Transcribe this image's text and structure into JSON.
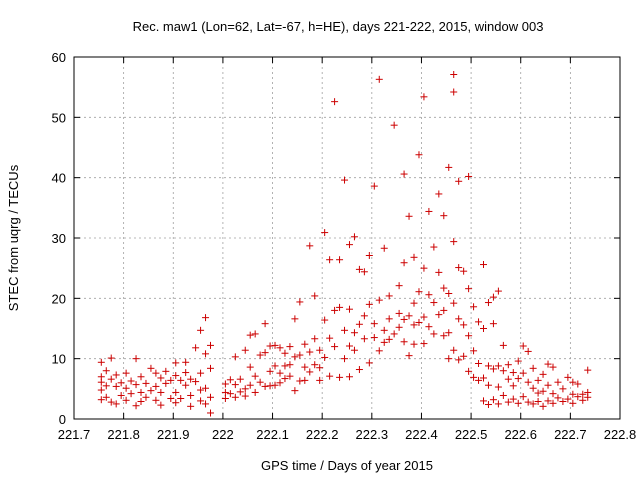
{
  "chart_data": {
    "type": "scatter",
    "title": "Rec. maw1 (Lon=62, Lat=-67, h=HE), days 221-222, 2015, window 003",
    "xlabel": "GPS time / Days of year 2015",
    "ylabel": "STEC from uqrg / TECUs",
    "xlim": [
      221.7,
      222.8
    ],
    "ylim": [
      0,
      60
    ],
    "xticks": [
      "221.7",
      "221.8",
      "221.9",
      "222",
      "222.1",
      "222.2",
      "222.3",
      "222.4",
      "222.5",
      "222.6",
      "222.7",
      "222.8"
    ],
    "yticks": [
      "0",
      "10",
      "20",
      "30",
      "40",
      "50",
      "60"
    ],
    "grid": true,
    "marker": "+",
    "color": "#cc0000",
    "series": [
      {
        "name": "STEC",
        "points": [
          [
            221.755,
            9.4
          ],
          [
            221.755,
            7.0
          ],
          [
            221.755,
            6.1
          ],
          [
            221.755,
            4.8
          ],
          [
            221.755,
            3.2
          ],
          [
            221.765,
            8.0
          ],
          [
            221.765,
            5.5
          ],
          [
            221.765,
            3.6
          ],
          [
            221.775,
            10.1
          ],
          [
            221.775,
            6.6
          ],
          [
            221.775,
            2.8
          ],
          [
            221.785,
            7.3
          ],
          [
            221.785,
            5.4
          ],
          [
            221.785,
            2.5
          ],
          [
            221.795,
            6.0
          ],
          [
            221.795,
            3.9
          ],
          [
            221.805,
            7.6
          ],
          [
            221.805,
            5.1
          ],
          [
            221.805,
            3.1
          ],
          [
            221.815,
            6.3
          ],
          [
            221.815,
            4.2
          ],
          [
            221.825,
            10.0
          ],
          [
            221.825,
            5.7
          ],
          [
            221.825,
            2.2
          ],
          [
            221.835,
            7.0
          ],
          [
            221.835,
            4.4
          ],
          [
            221.835,
            2.9
          ],
          [
            221.845,
            5.9
          ],
          [
            221.845,
            3.6
          ],
          [
            221.855,
            8.4
          ],
          [
            221.855,
            4.7
          ],
          [
            221.865,
            7.6
          ],
          [
            221.865,
            5.4
          ],
          [
            221.865,
            3.1
          ],
          [
            221.875,
            6.8
          ],
          [
            221.875,
            4.4
          ],
          [
            221.875,
            2.3
          ],
          [
            221.885,
            7.9
          ],
          [
            221.885,
            5.9
          ],
          [
            221.895,
            6.4
          ],
          [
            221.895,
            3.4
          ],
          [
            221.905,
            9.3
          ],
          [
            221.905,
            7.2
          ],
          [
            221.905,
            4.4
          ],
          [
            221.905,
            2.7
          ],
          [
            221.915,
            6.4
          ],
          [
            221.915,
            3.4
          ],
          [
            221.925,
            9.4
          ],
          [
            221.925,
            7.7
          ],
          [
            221.925,
            5.6
          ],
          [
            221.935,
            6.6
          ],
          [
            221.935,
            3.9
          ],
          [
            221.935,
            2.1
          ],
          [
            221.945,
            11.8
          ],
          [
            221.945,
            6.2
          ],
          [
            221.955,
            14.7
          ],
          [
            221.955,
            7.6
          ],
          [
            221.955,
            4.8
          ],
          [
            221.955,
            3.0
          ],
          [
            221.965,
            16.8
          ],
          [
            221.965,
            10.8
          ],
          [
            221.965,
            5.1
          ],
          [
            221.965,
            2.5
          ],
          [
            221.975,
            12.2
          ],
          [
            221.975,
            8.4
          ],
          [
            221.975,
            3.6
          ],
          [
            221.975,
            1.0
          ],
          [
            222.005,
            5.8
          ],
          [
            222.005,
            4.4
          ],
          [
            222.005,
            3.4
          ],
          [
            222.015,
            6.5
          ],
          [
            222.015,
            4.2
          ],
          [
            222.025,
            10.3
          ],
          [
            222.025,
            5.7
          ],
          [
            222.025,
            3.6
          ],
          [
            222.035,
            6.6
          ],
          [
            222.035,
            4.5
          ],
          [
            222.045,
            11.4
          ],
          [
            222.045,
            5.0
          ],
          [
            222.045,
            3.8
          ],
          [
            222.055,
            13.9
          ],
          [
            222.055,
            8.6
          ],
          [
            222.055,
            5.6
          ],
          [
            222.065,
            14.1
          ],
          [
            222.065,
            7.1
          ],
          [
            222.065,
            4.4
          ],
          [
            222.075,
            10.6
          ],
          [
            222.075,
            6.1
          ],
          [
            222.085,
            15.8
          ],
          [
            222.085,
            11.0
          ],
          [
            222.085,
            5.4
          ],
          [
            222.095,
            12.1
          ],
          [
            222.095,
            7.9
          ],
          [
            222.095,
            5.5
          ],
          [
            222.105,
            12.2
          ],
          [
            222.105,
            8.8
          ],
          [
            222.105,
            5.6
          ],
          [
            222.115,
            11.8
          ],
          [
            222.115,
            7.6
          ],
          [
            222.115,
            6.0
          ],
          [
            222.125,
            10.9
          ],
          [
            222.125,
            8.8
          ],
          [
            222.125,
            6.7
          ],
          [
            222.135,
            12.0
          ],
          [
            222.135,
            9.0
          ],
          [
            222.135,
            7.1
          ],
          [
            222.145,
            16.6
          ],
          [
            222.145,
            10.3
          ],
          [
            222.145,
            4.7
          ],
          [
            222.155,
            19.4
          ],
          [
            222.155,
            10.6
          ],
          [
            222.155,
            6.3
          ],
          [
            222.165,
            12.4
          ],
          [
            222.165,
            8.6
          ],
          [
            222.165,
            6.4
          ],
          [
            222.175,
            28.7
          ],
          [
            222.175,
            11.1
          ],
          [
            222.175,
            7.8
          ],
          [
            222.185,
            20.4
          ],
          [
            222.185,
            13.3
          ],
          [
            222.185,
            9.0
          ],
          [
            222.195,
            11.4
          ],
          [
            222.195,
            8.5
          ],
          [
            222.195,
            6.4
          ],
          [
            222.205,
            30.9
          ],
          [
            222.205,
            16.4
          ],
          [
            222.205,
            10.2
          ],
          [
            222.215,
            26.4
          ],
          [
            222.215,
            13.4
          ],
          [
            222.215,
            7.1
          ],
          [
            222.225,
            52.6
          ],
          [
            222.225,
            18.0
          ],
          [
            222.225,
            12.0
          ],
          [
            222.235,
            26.4
          ],
          [
            222.235,
            18.5
          ],
          [
            222.235,
            6.9
          ],
          [
            222.245,
            39.6
          ],
          [
            222.245,
            14.7
          ],
          [
            222.245,
            10.0
          ],
          [
            222.255,
            28.9
          ],
          [
            222.255,
            18.2
          ],
          [
            222.255,
            12.1
          ],
          [
            222.255,
            7.0
          ],
          [
            222.265,
            30.2
          ],
          [
            222.265,
            14.3
          ],
          [
            222.265,
            11.4
          ],
          [
            222.275,
            24.8
          ],
          [
            222.275,
            15.7
          ],
          [
            222.275,
            8.2
          ],
          [
            222.285,
            24.4
          ],
          [
            222.285,
            17.1
          ],
          [
            222.285,
            13.3
          ],
          [
            222.295,
            27.1
          ],
          [
            222.295,
            19.0
          ],
          [
            222.295,
            9.3
          ],
          [
            222.305,
            38.6
          ],
          [
            222.305,
            15.8
          ],
          [
            222.305,
            13.5
          ],
          [
            222.315,
            56.3
          ],
          [
            222.315,
            19.7
          ],
          [
            222.315,
            11.3
          ],
          [
            222.325,
            28.3
          ],
          [
            222.325,
            14.7
          ],
          [
            222.325,
            12.7
          ],
          [
            222.335,
            20.4
          ],
          [
            222.335,
            16.6
          ],
          [
            222.335,
            13.2
          ],
          [
            222.345,
            48.7
          ],
          [
            222.345,
            14.1
          ],
          [
            222.355,
            22.1
          ],
          [
            222.355,
            17.5
          ],
          [
            222.355,
            15.2
          ],
          [
            222.365,
            40.6
          ],
          [
            222.365,
            25.9
          ],
          [
            222.365,
            16.5
          ],
          [
            222.365,
            12.8
          ],
          [
            222.375,
            33.6
          ],
          [
            222.375,
            17.1
          ],
          [
            222.375,
            10.5
          ],
          [
            222.385,
            26.8
          ],
          [
            222.385,
            19.2
          ],
          [
            222.385,
            15.6
          ],
          [
            222.385,
            12.4
          ],
          [
            222.395,
            43.8
          ],
          [
            222.395,
            21.1
          ],
          [
            222.395,
            16.0
          ],
          [
            222.405,
            53.4
          ],
          [
            222.405,
            25.0
          ],
          [
            222.405,
            16.9
          ],
          [
            222.405,
            12.5
          ],
          [
            222.415,
            34.4
          ],
          [
            222.415,
            20.6
          ],
          [
            222.415,
            15.3
          ],
          [
            222.425,
            28.5
          ],
          [
            222.425,
            19.3
          ],
          [
            222.425,
            14.1
          ],
          [
            222.435,
            37.3
          ],
          [
            222.435,
            24.3
          ],
          [
            222.435,
            17.3
          ],
          [
            222.445,
            33.7
          ],
          [
            222.445,
            21.7
          ],
          [
            222.445,
            18.0
          ],
          [
            222.445,
            13.8
          ],
          [
            222.455,
            41.7
          ],
          [
            222.455,
            20.8
          ],
          [
            222.455,
            14.3
          ],
          [
            222.455,
            10.0
          ],
          [
            222.465,
            57.1
          ],
          [
            222.465,
            54.2
          ],
          [
            222.465,
            29.4
          ],
          [
            222.465,
            19.2
          ],
          [
            222.465,
            11.4
          ],
          [
            222.475,
            39.4
          ],
          [
            222.475,
            25.1
          ],
          [
            222.475,
            16.6
          ],
          [
            222.475,
            9.8
          ],
          [
            222.485,
            24.5
          ],
          [
            222.485,
            15.6
          ],
          [
            222.485,
            10.4
          ],
          [
            222.495,
            40.2
          ],
          [
            222.495,
            21.6
          ],
          [
            222.495,
            13.8
          ],
          [
            222.495,
            7.9
          ],
          [
            222.505,
            18.6
          ],
          [
            222.505,
            11.3
          ],
          [
            222.505,
            6.9
          ],
          [
            222.515,
            16.1
          ],
          [
            222.515,
            9.2
          ],
          [
            222.515,
            6.4
          ],
          [
            222.525,
            25.6
          ],
          [
            222.525,
            15.0
          ],
          [
            222.525,
            6.8
          ],
          [
            222.525,
            3.0
          ],
          [
            222.535,
            19.3
          ],
          [
            222.535,
            8.8
          ],
          [
            222.535,
            5.6
          ],
          [
            222.535,
            2.4
          ],
          [
            222.545,
            20.2
          ],
          [
            222.545,
            15.8
          ],
          [
            222.545,
            8.3
          ],
          [
            222.545,
            3.2
          ],
          [
            222.555,
            21.2
          ],
          [
            222.555,
            8.8
          ],
          [
            222.555,
            5.3
          ],
          [
            222.555,
            2.5
          ],
          [
            222.565,
            12.2
          ],
          [
            222.565,
            8.0
          ],
          [
            222.565,
            3.9
          ],
          [
            222.575,
            9.0
          ],
          [
            222.575,
            6.6
          ],
          [
            222.575,
            2.8
          ],
          [
            222.585,
            7.7
          ],
          [
            222.585,
            5.5
          ],
          [
            222.585,
            3.3
          ],
          [
            222.595,
            9.6
          ],
          [
            222.595,
            6.7
          ],
          [
            222.595,
            2.6
          ],
          [
            222.605,
            12.1
          ],
          [
            222.605,
            7.6
          ],
          [
            222.605,
            3.7
          ],
          [
            222.615,
            11.2
          ],
          [
            222.615,
            6.1
          ],
          [
            222.615,
            2.8
          ],
          [
            222.625,
            8.4
          ],
          [
            222.625,
            5.1
          ],
          [
            222.625,
            2.5
          ],
          [
            222.635,
            6.4
          ],
          [
            222.635,
            4.3
          ],
          [
            222.635,
            2.9
          ],
          [
            222.645,
            7.4
          ],
          [
            222.645,
            4.6
          ],
          [
            222.645,
            2.1
          ],
          [
            222.655,
            9.1
          ],
          [
            222.655,
            5.6
          ],
          [
            222.655,
            3.0
          ],
          [
            222.665,
            8.6
          ],
          [
            222.665,
            4.2
          ],
          [
            222.665,
            2.6
          ],
          [
            222.675,
            6.1
          ],
          [
            222.675,
            3.5
          ],
          [
            222.685,
            5.0
          ],
          [
            222.685,
            2.9
          ],
          [
            222.695,
            6.9
          ],
          [
            222.695,
            3.3
          ],
          [
            222.705,
            6.1
          ],
          [
            222.705,
            4.1
          ],
          [
            222.705,
            2.6
          ],
          [
            222.715,
            5.8
          ],
          [
            222.715,
            3.7
          ],
          [
            222.725,
            4.1
          ],
          [
            222.725,
            3.1
          ],
          [
            222.735,
            8.1
          ],
          [
            222.735,
            4.4
          ],
          [
            222.735,
            3.6
          ]
        ]
      }
    ]
  }
}
